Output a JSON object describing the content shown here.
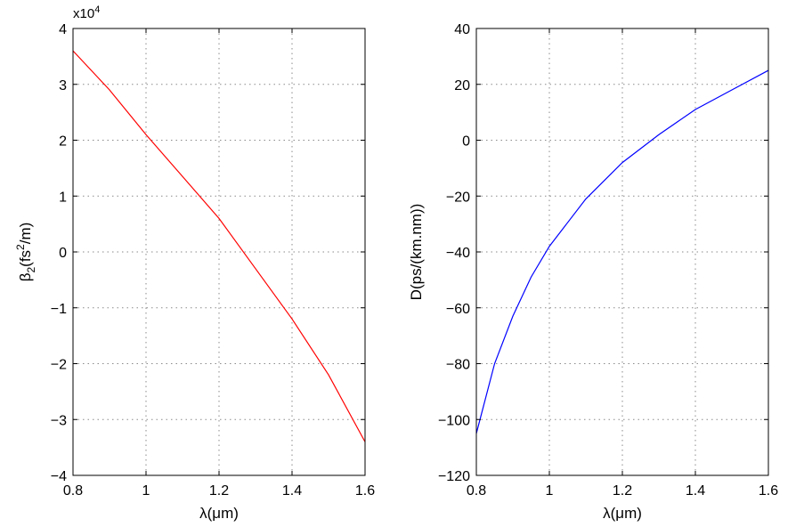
{
  "chart_data": [
    {
      "type": "line",
      "xlabel": "λ(μm)",
      "ylabel": "β₂(fs²/m)",
      "ylabel_parts": {
        "base": "β",
        "sub": "2",
        "pre": "(fs",
        "sup": "2",
        "post": "/m)"
      },
      "y_multiplier": "x10",
      "y_multiplier_exp": "4",
      "xlim": [
        0.8,
        1.6
      ],
      "ylim": [
        -4,
        4
      ],
      "xticks": [
        0.8,
        1,
        1.2,
        1.4,
        1.6
      ],
      "xtick_labels": [
        "0.8",
        "1",
        "1.2",
        "1.4",
        "1.6"
      ],
      "yticks": [
        -4,
        -3,
        -2,
        -1,
        0,
        1,
        2,
        3,
        4
      ],
      "ytick_labels": [
        "−4",
        "−3",
        "−2",
        "−1",
        "0",
        "1",
        "2",
        "3",
        "4"
      ],
      "grid": true,
      "series": [
        {
          "color": "#ff0000",
          "x": [
            0.8,
            0.9,
            1.0,
            1.1,
            1.2,
            1.3,
            1.4,
            1.5,
            1.6
          ],
          "y": [
            3.6,
            2.9,
            2.1,
            1.35,
            0.6,
            -0.3,
            -1.2,
            -2.2,
            -3.4
          ]
        }
      ]
    },
    {
      "type": "line",
      "xlabel": "λ(μm)",
      "ylabel": "D(ps/(km.nm))",
      "xlim": [
        0.8,
        1.6
      ],
      "ylim": [
        -120,
        40
      ],
      "xticks": [
        0.8,
        1,
        1.2,
        1.4,
        1.6
      ],
      "xtick_labels": [
        "0.8",
        "1",
        "1.2",
        "1.4",
        "1.6"
      ],
      "yticks": [
        -120,
        -100,
        -80,
        -60,
        -40,
        -20,
        0,
        20,
        40
      ],
      "ytick_labels": [
        "−120",
        "−100",
        "−80",
        "−60",
        "−40",
        "−20",
        "0",
        "20",
        "40"
      ],
      "grid": true,
      "series": [
        {
          "color": "#0000ff",
          "x": [
            0.8,
            0.85,
            0.9,
            0.95,
            1.0,
            1.1,
            1.2,
            1.3,
            1.4,
            1.5,
            1.6
          ],
          "y": [
            -105,
            -80,
            -63,
            -49,
            -38,
            -21,
            -8,
            2,
            11,
            18,
            25
          ]
        }
      ]
    }
  ]
}
